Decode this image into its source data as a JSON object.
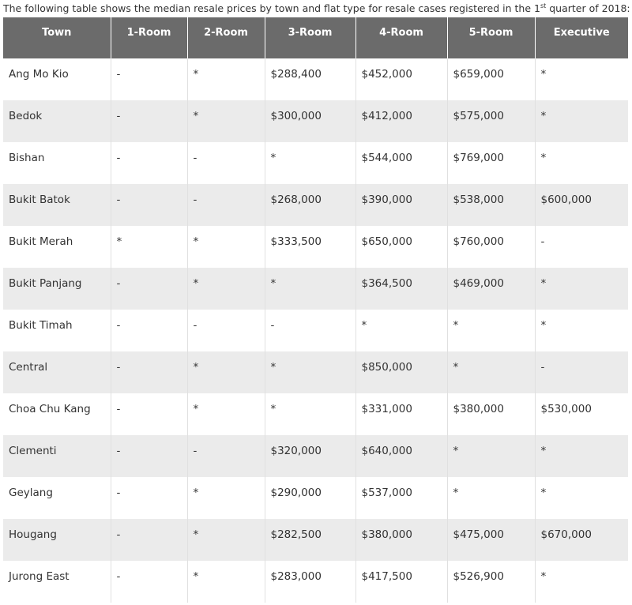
{
  "intro": {
    "before": "The following table shows the median resale prices by town and flat type for resale cases registered in the 1",
    "sup": "st",
    "after": " quarter of 2018:"
  },
  "table": {
    "header": [
      "Town",
      "1-Room",
      "2-Room",
      "3-Room",
      "4-Room",
      "5-Room",
      "Executive"
    ],
    "rows": [
      [
        "Ang Mo Kio",
        "-",
        "*",
        "$288,400",
        "$452,000",
        "$659,000",
        "*"
      ],
      [
        "Bedok",
        "-",
        "*",
        "$300,000",
        "$412,000",
        "$575,000",
        "*"
      ],
      [
        "Bishan",
        "-",
        "-",
        "*",
        "$544,000",
        "$769,000",
        "*"
      ],
      [
        "Bukit Batok",
        "-",
        "-",
        "$268,000",
        "$390,000",
        "$538,000",
        "$600,000"
      ],
      [
        "Bukit Merah",
        "*",
        "*",
        "$333,500",
        "$650,000",
        "$760,000",
        "-"
      ],
      [
        "Bukit Panjang",
        "-",
        "*",
        "*",
        "$364,500",
        "$469,000",
        "*"
      ],
      [
        "Bukit Timah",
        "-",
        "-",
        "-",
        "*",
        "*",
        "*"
      ],
      [
        "Central",
        "-",
        "*",
        "*",
        "$850,000",
        "*",
        "-"
      ],
      [
        "Choa Chu Kang",
        "-",
        "*",
        "*",
        "$331,000",
        "$380,000",
        "$530,000"
      ],
      [
        "Clementi",
        "-",
        "-",
        "$320,000",
        "$640,000",
        "*",
        "*"
      ],
      [
        "Geylang",
        "-",
        "*",
        "$290,000",
        "$537,000",
        "*",
        "*"
      ],
      [
        "Hougang",
        "-",
        "*",
        "$282,500",
        "$380,000",
        "$475,000",
        "$670,000"
      ],
      [
        "Jurong East",
        "-",
        "*",
        "$283,000",
        "$417,500",
        "$526,900",
        "*"
      ]
    ]
  }
}
